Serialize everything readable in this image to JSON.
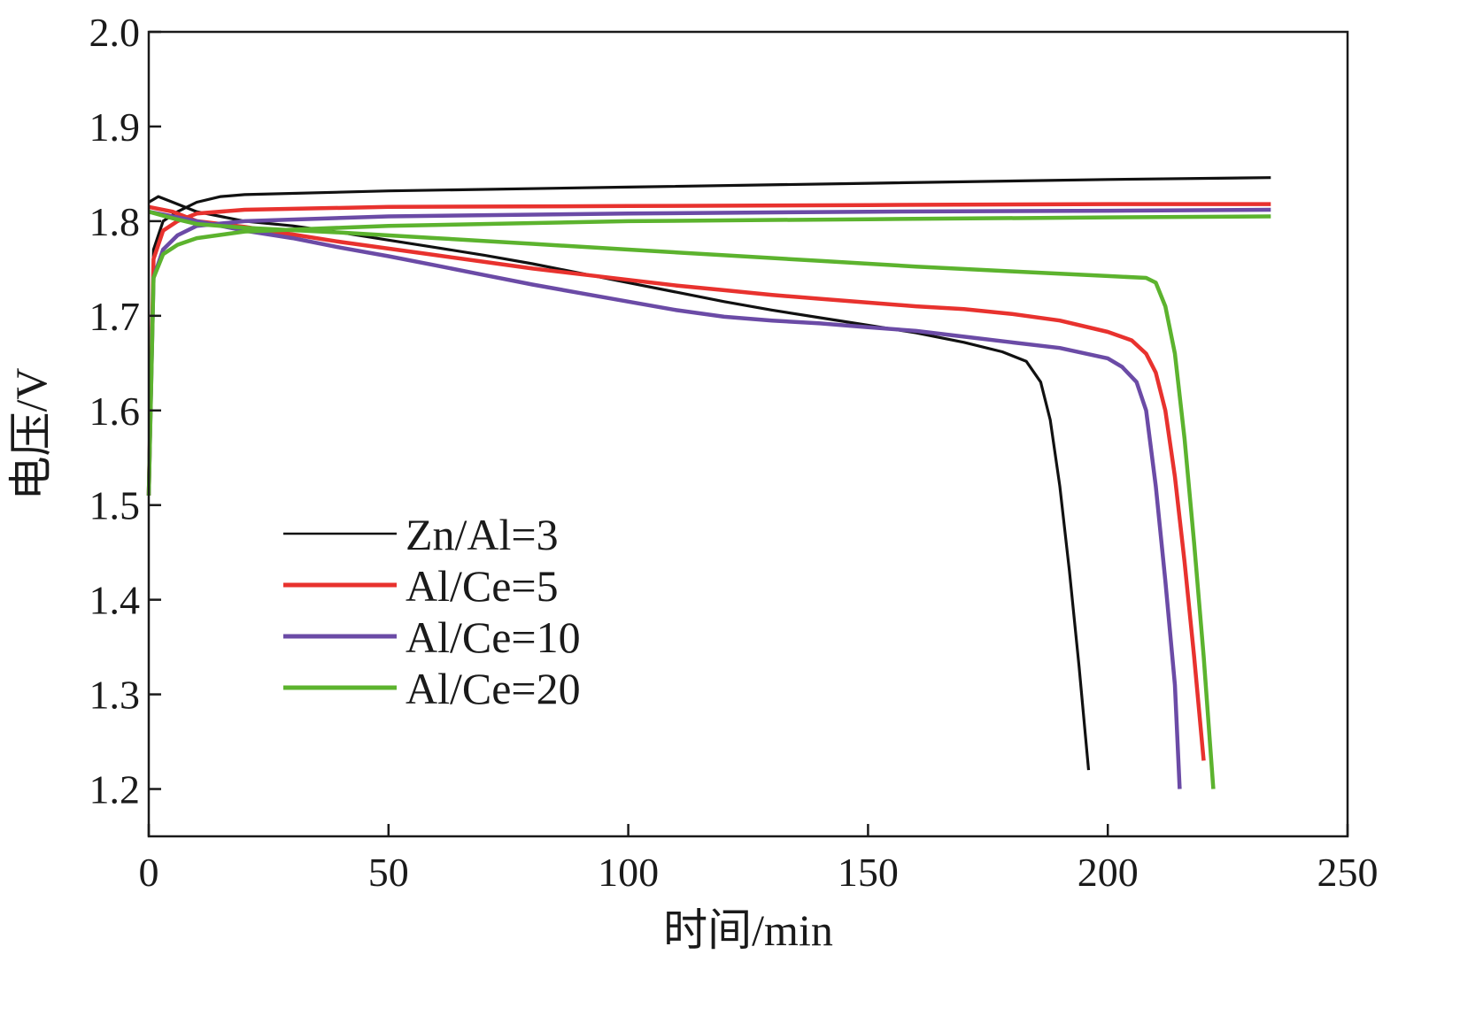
{
  "chart_data": {
    "type": "line",
    "title": "",
    "xlabel": "时间/min",
    "ylabel": "电压/V",
    "xlim": [
      0,
      250
    ],
    "ylim": [
      1.15,
      2.0
    ],
    "xticks": [
      "0",
      "50",
      "100",
      "150",
      "200",
      "250"
    ],
    "yticks": [
      "1.2",
      "1.3",
      "1.4",
      "1.5",
      "1.6",
      "1.7",
      "1.8",
      "1.9",
      "2.0"
    ],
    "grid": false,
    "legend_position": "lower-left",
    "series": [
      {
        "name": "Zn/Al=3",
        "color": "#111111",
        "charge": [
          [
            0,
            1.51
          ],
          [
            1,
            1.77
          ],
          [
            3,
            1.8
          ],
          [
            6,
            1.81
          ],
          [
            10,
            1.82
          ],
          [
            15,
            1.826
          ],
          [
            20,
            1.828
          ],
          [
            50,
            1.832
          ],
          [
            100,
            1.836
          ],
          [
            150,
            1.84
          ],
          [
            200,
            1.844
          ],
          [
            234,
            1.846
          ]
        ],
        "discharge": [
          [
            0,
            1.82
          ],
          [
            2,
            1.826
          ],
          [
            5,
            1.82
          ],
          [
            10,
            1.81
          ],
          [
            20,
            1.8
          ],
          [
            30,
            1.795
          ],
          [
            40,
            1.788
          ],
          [
            50,
            1.78
          ],
          [
            60,
            1.772
          ],
          [
            70,
            1.764
          ],
          [
            80,
            1.755
          ],
          [
            90,
            1.745
          ],
          [
            100,
            1.735
          ],
          [
            110,
            1.725
          ],
          [
            120,
            1.715
          ],
          [
            130,
            1.706
          ],
          [
            140,
            1.698
          ],
          [
            150,
            1.69
          ],
          [
            160,
            1.682
          ],
          [
            170,
            1.672
          ],
          [
            178,
            1.662
          ],
          [
            183,
            1.652
          ],
          [
            186,
            1.63
          ],
          [
            188,
            1.59
          ],
          [
            190,
            1.52
          ],
          [
            192,
            1.43
          ],
          [
            194,
            1.33
          ],
          [
            196,
            1.22
          ]
        ]
      },
      {
        "name": "Al/Ce=5",
        "color": "#e8322e",
        "charge": [
          [
            0,
            1.51
          ],
          [
            1,
            1.76
          ],
          [
            3,
            1.79
          ],
          [
            6,
            1.8
          ],
          [
            10,
            1.808
          ],
          [
            20,
            1.812
          ],
          [
            50,
            1.815
          ],
          [
            100,
            1.816
          ],
          [
            150,
            1.817
          ],
          [
            200,
            1.818
          ],
          [
            234,
            1.818
          ]
        ],
        "discharge": [
          [
            0,
            1.815
          ],
          [
            5,
            1.81
          ],
          [
            10,
            1.8
          ],
          [
            20,
            1.794
          ],
          [
            30,
            1.786
          ],
          [
            40,
            1.778
          ],
          [
            50,
            1.771
          ],
          [
            60,
            1.764
          ],
          [
            70,
            1.757
          ],
          [
            80,
            1.75
          ],
          [
            90,
            1.744
          ],
          [
            100,
            1.738
          ],
          [
            110,
            1.732
          ],
          [
            120,
            1.727
          ],
          [
            130,
            1.722
          ],
          [
            140,
            1.718
          ],
          [
            150,
            1.714
          ],
          [
            160,
            1.71
          ],
          [
            170,
            1.707
          ],
          [
            180,
            1.702
          ],
          [
            190,
            1.695
          ],
          [
            200,
            1.683
          ],
          [
            205,
            1.674
          ],
          [
            208,
            1.66
          ],
          [
            210,
            1.64
          ],
          [
            212,
            1.6
          ],
          [
            214,
            1.53
          ],
          [
            216,
            1.44
          ],
          [
            218,
            1.34
          ],
          [
            220,
            1.23
          ]
        ]
      },
      {
        "name": "Al/Ce=10",
        "color": "#6b4ba6",
        "charge": [
          [
            0,
            1.51
          ],
          [
            1,
            1.74
          ],
          [
            3,
            1.77
          ],
          [
            6,
            1.785
          ],
          [
            10,
            1.795
          ],
          [
            20,
            1.8
          ],
          [
            50,
            1.805
          ],
          [
            100,
            1.808
          ],
          [
            150,
            1.81
          ],
          [
            200,
            1.811
          ],
          [
            234,
            1.812
          ]
        ],
        "discharge": [
          [
            0,
            1.81
          ],
          [
            5,
            1.805
          ],
          [
            10,
            1.8
          ],
          [
            20,
            1.79
          ],
          [
            30,
            1.782
          ],
          [
            40,
            1.772
          ],
          [
            50,
            1.763
          ],
          [
            60,
            1.753
          ],
          [
            70,
            1.743
          ],
          [
            80,
            1.733
          ],
          [
            90,
            1.724
          ],
          [
            100,
            1.715
          ],
          [
            110,
            1.706
          ],
          [
            120,
            1.699
          ],
          [
            130,
            1.695
          ],
          [
            140,
            1.692
          ],
          [
            150,
            1.688
          ],
          [
            160,
            1.684
          ],
          [
            170,
            1.678
          ],
          [
            180,
            1.672
          ],
          [
            190,
            1.666
          ],
          [
            200,
            1.655
          ],
          [
            203,
            1.646
          ],
          [
            206,
            1.63
          ],
          [
            208,
            1.6
          ],
          [
            210,
            1.52
          ],
          [
            212,
            1.42
          ],
          [
            214,
            1.31
          ],
          [
            215,
            1.2
          ]
        ]
      },
      {
        "name": "Al/Ce=20",
        "color": "#5cb32e",
        "charge": [
          [
            0,
            1.51
          ],
          [
            1,
            1.74
          ],
          [
            3,
            1.765
          ],
          [
            6,
            1.775
          ],
          [
            10,
            1.782
          ],
          [
            20,
            1.789
          ],
          [
            50,
            1.795
          ],
          [
            100,
            1.8
          ],
          [
            150,
            1.802
          ],
          [
            200,
            1.804
          ],
          [
            234,
            1.805
          ]
        ],
        "discharge": [
          [
            0,
            1.81
          ],
          [
            5,
            1.803
          ],
          [
            10,
            1.797
          ],
          [
            20,
            1.793
          ],
          [
            40,
            1.788
          ],
          [
            60,
            1.782
          ],
          [
            80,
            1.776
          ],
          [
            100,
            1.77
          ],
          [
            120,
            1.764
          ],
          [
            140,
            1.758
          ],
          [
            160,
            1.752
          ],
          [
            180,
            1.747
          ],
          [
            200,
            1.742
          ],
          [
            208,
            1.74
          ],
          [
            210,
            1.735
          ],
          [
            212,
            1.71
          ],
          [
            214,
            1.66
          ],
          [
            216,
            1.57
          ],
          [
            218,
            1.46
          ],
          [
            220,
            1.34
          ],
          [
            222,
            1.2
          ]
        ]
      }
    ]
  }
}
